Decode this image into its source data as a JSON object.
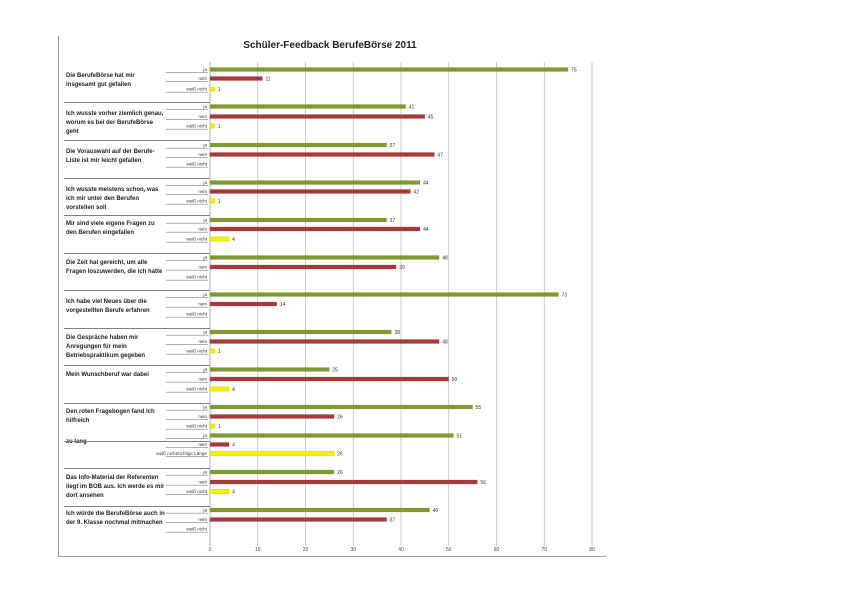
{
  "chart_data": {
    "type": "bar",
    "orientation": "horizontal",
    "title": "Schüler-Feedback BerufeBörse 2011",
    "xlim": [
      0,
      80
    ],
    "xticks": [
      0,
      10,
      20,
      30,
      40,
      50,
      60,
      70,
      80
    ],
    "grid": true,
    "colors": {
      "ja": "#7f9a30",
      "nein": "#a63a3a",
      "weiss_nicht": "#f2f200"
    },
    "questions": [
      {
        "label": "Die BerufeBörse hat mir insgesamt gut gefallen",
        "bars": [
          {
            "cat": "ja",
            "value": 75,
            "label": "75"
          },
          {
            "cat": "nein",
            "value": 11,
            "label": "11"
          },
          {
            "cat": "weiss_nicht",
            "value": 1,
            "label": "1"
          }
        ]
      },
      {
        "label": "Ich wusste vorher ziemlich genau, worum es bei der BerufeBörse geht",
        "bars": [
          {
            "cat": "ja",
            "value": 41,
            "label": "41"
          },
          {
            "cat": "nein",
            "value": 45,
            "label": "45"
          },
          {
            "cat": "weiss_nicht",
            "value": 1,
            "label": "1"
          }
        ]
      },
      {
        "label": "Die Vorauswahl auf der Berufe-Liste ist mir leicht gefallen",
        "bars": [
          {
            "cat": "ja",
            "value": 37,
            "label": "37"
          },
          {
            "cat": "nein",
            "value": 47,
            "label": "47"
          },
          {
            "cat": "weiss_nicht",
            "value": null,
            "label": ""
          }
        ]
      },
      {
        "label": "Ich wusste meistens schon, was ich mir unter den Berufen vorstellen soll",
        "bars": [
          {
            "cat": "ja",
            "value": 44,
            "label": "44"
          },
          {
            "cat": "nein",
            "value": 42,
            "label": "42"
          },
          {
            "cat": "weiss_nicht",
            "value": 1,
            "label": "1"
          }
        ]
      },
      {
        "label": "Mir sind viele eigene Fragen zu den Berufen eingefallen",
        "bars": [
          {
            "cat": "ja",
            "value": 37,
            "label": "37"
          },
          {
            "cat": "nein",
            "value": 44,
            "label": "44"
          },
          {
            "cat": "weiss_nicht",
            "value": 4,
            "label": "4"
          }
        ]
      },
      {
        "label": "Die Zeit hat gereicht, um alle Fragen loszuwerden, die ich hatte",
        "bars": [
          {
            "cat": "ja",
            "value": 48,
            "label": "48"
          },
          {
            "cat": "nein",
            "value": 39,
            "label": "39"
          },
          {
            "cat": "weiss_nicht",
            "value": null,
            "label": ""
          }
        ]
      },
      {
        "label": "Ich habe viel Neues über die vorgestellten Berufe erfahren",
        "bars": [
          {
            "cat": "ja",
            "value": 73,
            "label": "73"
          },
          {
            "cat": "nein",
            "value": 14,
            "label": "14"
          },
          {
            "cat": "weiss_nicht",
            "value": null,
            "label": ""
          }
        ]
      },
      {
        "label": "Die Gespräche haben mir Anregungen für mein Betriebspraktikum gegeben",
        "bars": [
          {
            "cat": "ja",
            "value": 38,
            "label": "38"
          },
          {
            "cat": "nein",
            "value": 48,
            "label": "48"
          },
          {
            "cat": "weiss_nicht",
            "value": 1,
            "label": "1"
          }
        ]
      },
      {
        "label": "Mein Wunschberuf war dabei",
        "bars": [
          {
            "cat": "ja",
            "value": 25,
            "label": "25"
          },
          {
            "cat": "nein",
            "value": 50,
            "label": "50"
          },
          {
            "cat": "weiss_nicht",
            "value": 4,
            "label": "4"
          }
        ]
      },
      {
        "label": "Den roten Fragebogen fand ich hilfreich",
        "bars": [
          {
            "cat": "ja",
            "value": 55,
            "label": "55"
          },
          {
            "cat": "nein",
            "value": 26,
            "label": "26"
          },
          {
            "cat": "weiss_nicht",
            "value": 1,
            "label": "1"
          }
        ]
      },
      {
        "label": "zu lang",
        "bars": [
          {
            "cat": "ja",
            "value": 51,
            "label": "51"
          },
          {
            "cat": "nein",
            "value": 4,
            "label": "4"
          },
          {
            "cat": "weiss_nicht_laenge",
            "value": 26,
            "label": "26"
          }
        ]
      },
      {
        "label": "Das Info-Material der Referenten liegt im BOB aus. Ich werde es mir dort ansehen",
        "bars": [
          {
            "cat": "ja",
            "value": 26,
            "label": "26"
          },
          {
            "cat": "nein",
            "value": 56,
            "label": "56"
          },
          {
            "cat": "weiss_nicht",
            "value": 4,
            "label": "4"
          }
        ]
      },
      {
        "label": "Ich würde die BerufeBörse auch in der 9. Klasse nochmal mitmachen",
        "bars": [
          {
            "cat": "ja",
            "value": 46,
            "label": "46"
          },
          {
            "cat": "nein",
            "value": 37,
            "label": "37"
          },
          {
            "cat": "weiss_nicht",
            "value": null,
            "label": ""
          }
        ]
      }
    ],
    "category_labels": {
      "ja": "ja",
      "nein": "nein",
      "weiss_nicht": "weiß nicht",
      "weiss_nicht_laenge": "weiß nicht/richtige Länge"
    }
  }
}
